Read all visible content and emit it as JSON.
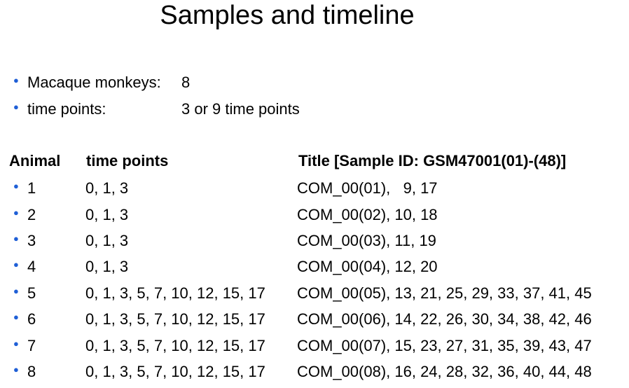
{
  "page": {
    "title": "Samples and timeline"
  },
  "bullets": [
    {
      "label": "Macaque monkeys:",
      "value": "8"
    },
    {
      "label": "time points:",
      "value": "3 or 9 time points"
    }
  ],
  "table": {
    "headers": {
      "animal": "Animal",
      "time_points": "time points",
      "title": "Title [Sample ID: GSM47001(01)-(48)]"
    },
    "rows": [
      {
        "animal": "1",
        "time_points": "0, 1, 3",
        "title": "COM_00(01),   9, 17"
      },
      {
        "animal": "2",
        "time_points": "0, 1, 3",
        "title": "COM_00(02), 10, 18"
      },
      {
        "animal": "3",
        "time_points": "0, 1, 3",
        "title": "COM_00(03), 11, 19"
      },
      {
        "animal": "4",
        "time_points": "0, 1, 3",
        "title": "COM_00(04), 12, 20"
      },
      {
        "animal": "5",
        "time_points": "0, 1, 3, 5, 7, 10, 12, 15, 17",
        "title": "COM_00(05), 13, 21, 25, 29, 33, 37, 41, 45"
      },
      {
        "animal": "6",
        "time_points": "0, 1, 3, 5, 7, 10, 12, 15, 17",
        "title": "COM_00(06), 14, 22, 26, 30, 34, 38, 42, 46"
      },
      {
        "animal": "7",
        "time_points": "0, 1, 3, 5, 7, 10, 12, 15, 17",
        "title": "COM_00(07), 15, 23, 27, 31, 35, 39, 43, 47"
      },
      {
        "animal": "8",
        "time_points": "0, 1, 3, 5, 7, 10, 12, 15, 17",
        "title": "COM_00(08), 16, 24, 28, 32, 36, 40, 44, 48"
      }
    ]
  },
  "colors": {
    "bullet": "#1f5fd6",
    "text": "#000000",
    "background": "#ffffff"
  }
}
